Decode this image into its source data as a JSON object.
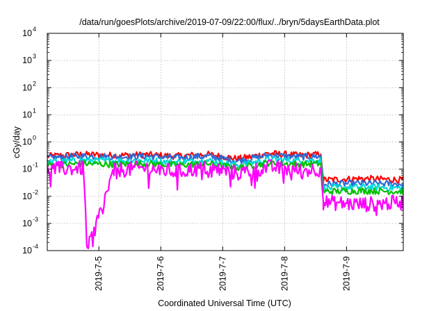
{
  "chart_data": {
    "type": "line",
    "title": "/data/run/goesPlots/archive/2019-07-09/22:00/flux/../bryn/5daysEarthData.plot",
    "xlabel": "Coordinated Universal Time (UTC)",
    "ylabel": "cGy/day",
    "yscale": "log",
    "ylim": [
      0.0001,
      10000
    ],
    "xlim": [
      "2019-07-04T04:00",
      "2019-07-09T22:00"
    ],
    "grid": true,
    "x_ticks": [
      "2019-7-5",
      "2019-7-6",
      "2019-7-7",
      "2019-7-8",
      "2019-7-9"
    ],
    "y_ticks": [
      {
        "base": "10",
        "exp": "4"
      },
      {
        "base": "10",
        "exp": "3"
      },
      {
        "base": "10",
        "exp": "2"
      },
      {
        "base": "10",
        "exp": "1"
      },
      {
        "base": "10",
        "exp": "0"
      },
      {
        "base": "10",
        "exp": "-1"
      },
      {
        "base": "10",
        "exp": "-2"
      },
      {
        "base": "10",
        "exp": "-3"
      },
      {
        "base": "10",
        "exp": "-4"
      }
    ],
    "colors": [
      "#ff0000",
      "#2e6bd6",
      "#00d8d8",
      "#00c000",
      "#ff00ff"
    ],
    "series": [
      {
        "color": "#ff0000",
        "x": [
          "2019-07-04T04:00",
          "2019-07-04T18:00",
          "2019-07-05T06:00",
          "2019-07-05T18:00",
          "2019-07-06T06:00",
          "2019-07-06T18:00",
          "2019-07-07T06:00",
          "2019-07-07T18:00",
          "2019-07-08T06:00",
          "2019-07-08T14:00",
          "2019-07-08T15:00",
          "2019-07-09T06:00",
          "2019-07-09T22:00"
        ],
        "y": [
          0.3,
          0.35,
          0.32,
          0.34,
          0.3,
          0.35,
          0.24,
          0.38,
          0.32,
          0.35,
          0.04,
          0.045,
          0.04
        ]
      },
      {
        "color": "#2e6bd6",
        "x": [
          "2019-07-04T04:00",
          "2019-07-04T18:00",
          "2019-07-05T06:00",
          "2019-07-05T18:00",
          "2019-07-06T06:00",
          "2019-07-06T18:00",
          "2019-07-07T06:00",
          "2019-07-07T18:00",
          "2019-07-08T06:00",
          "2019-07-08T14:00",
          "2019-07-08T15:00",
          "2019-07-09T06:00",
          "2019-07-09T22:00"
        ],
        "y": [
          0.26,
          0.3,
          0.28,
          0.3,
          0.26,
          0.3,
          0.2,
          0.33,
          0.28,
          0.3,
          0.028,
          0.03,
          0.028
        ]
      },
      {
        "color": "#00d8d8",
        "x": [
          "2019-07-04T04:00",
          "2019-07-04T18:00",
          "2019-07-05T06:00",
          "2019-07-05T18:00",
          "2019-07-06T06:00",
          "2019-07-06T18:00",
          "2019-07-07T06:00",
          "2019-07-07T18:00",
          "2019-07-08T06:00",
          "2019-07-08T14:00",
          "2019-07-08T15:00",
          "2019-07-09T06:00",
          "2019-07-09T22:00"
        ],
        "y": [
          0.18,
          0.21,
          0.2,
          0.21,
          0.18,
          0.21,
          0.14,
          0.23,
          0.2,
          0.21,
          0.02,
          0.022,
          0.02
        ]
      },
      {
        "color": "#00c000",
        "x": [
          "2019-07-04T04:00",
          "2019-07-04T18:00",
          "2019-07-05T06:00",
          "2019-07-05T18:00",
          "2019-07-06T06:00",
          "2019-07-06T18:00",
          "2019-07-07T06:00",
          "2019-07-07T18:00",
          "2019-07-08T06:00",
          "2019-07-08T14:00",
          "2019-07-08T15:00",
          "2019-07-09T06:00",
          "2019-07-09T22:00"
        ],
        "y": [
          0.14,
          0.16,
          0.15,
          0.16,
          0.14,
          0.16,
          0.11,
          0.17,
          0.15,
          0.16,
          0.015,
          0.016,
          0.015
        ]
      },
      {
        "color": "#ff00ff",
        "x": [
          "2019-07-04T04:00",
          "2019-07-04T18:00",
          "2019-07-04T19:30",
          "2019-07-05T06:00",
          "2019-07-05T18:00",
          "2019-07-06T06:00",
          "2019-07-06T18:00",
          "2019-07-07T06:00",
          "2019-07-07T18:00",
          "2019-07-08T06:00",
          "2019-07-08T14:00",
          "2019-07-08T15:00",
          "2019-07-09T06:00",
          "2019-07-09T22:00"
        ],
        "y": [
          0.1,
          0.11,
          0.0001,
          0.09,
          0.11,
          0.08,
          0.11,
          0.07,
          0.12,
          0.09,
          0.1,
          0.006,
          0.005,
          0.006
        ]
      }
    ]
  }
}
